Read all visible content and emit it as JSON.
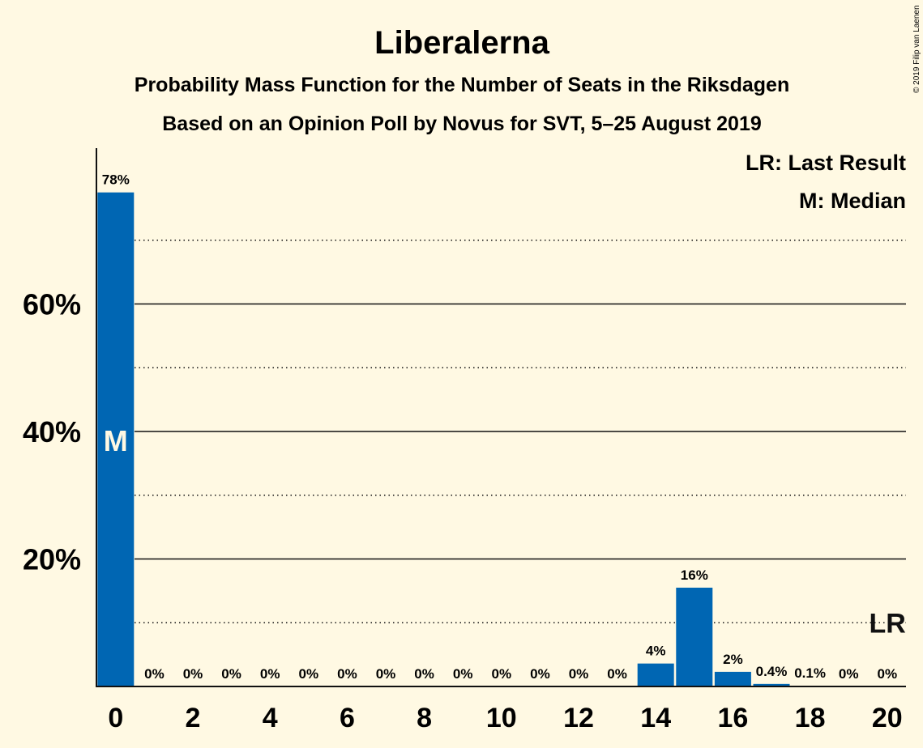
{
  "chart_data": {
    "type": "bar",
    "title": "Liberalerna",
    "subtitle_lines": [
      "Probability Mass Function for the Number of Seats in the Riksdagen",
      "Based on an Opinion Poll by Novus for SVT, 5–25 August 2019"
    ],
    "copyright": "© 2019 Filip van Laenen",
    "legend": [
      "LR: Last Result",
      "M: Median"
    ],
    "legend_position": "top-right",
    "x": [
      0,
      1,
      2,
      3,
      4,
      5,
      6,
      7,
      8,
      9,
      10,
      11,
      12,
      13,
      14,
      15,
      16,
      17,
      18,
      19,
      20
    ],
    "values": [
      77.5,
      0,
      0,
      0,
      0,
      0,
      0,
      0,
      0,
      0,
      0,
      0,
      0,
      0,
      3.6,
      15.5,
      2.3,
      0.4,
      0.1,
      0,
      0
    ],
    "data_labels": [
      "78%",
      "0%",
      "0%",
      "0%",
      "0%",
      "0%",
      "0%",
      "0%",
      "0%",
      "0%",
      "0%",
      "0%",
      "0%",
      "0%",
      "4%",
      "16%",
      "2%",
      "0.4%",
      "0.1%",
      "0%",
      "0%"
    ],
    "x_tick_labels": [
      "0",
      "2",
      "4",
      "6",
      "8",
      "10",
      "12",
      "14",
      "16",
      "18",
      "20"
    ],
    "y_tick_labels": [
      "20%",
      "40%",
      "60%"
    ],
    "y_ticks": [
      20,
      40,
      60
    ],
    "y_dotted_gridlines": [
      10,
      30,
      50,
      70
    ],
    "ylim": [
      0,
      84.5
    ],
    "median_seat": 0,
    "median_marker": "M",
    "last_result_seat": 20,
    "last_result_marker": "LR",
    "last_result_y": 10,
    "bar_color": "#0066B3",
    "background_color": "#FFF9E3",
    "grid": true
  }
}
